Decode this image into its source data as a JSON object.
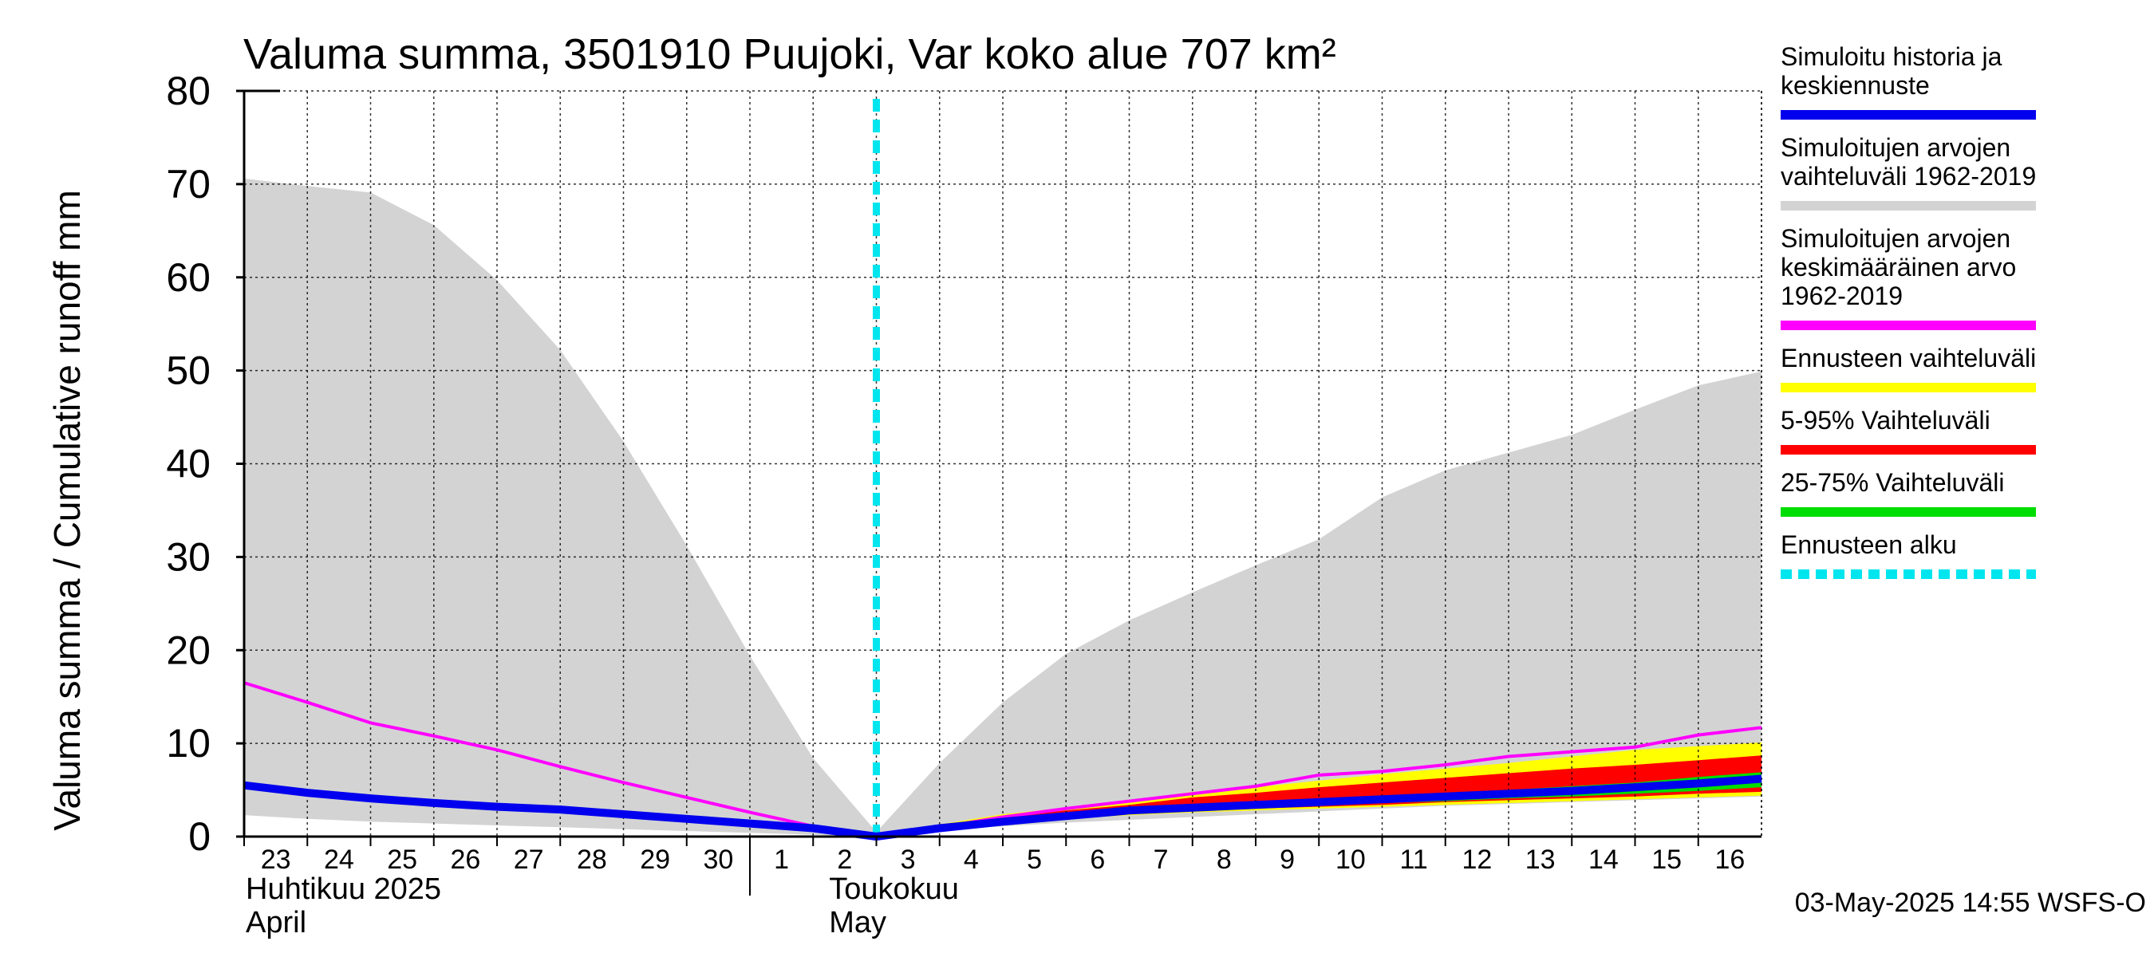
{
  "chart_data": {
    "type": "area",
    "title": "Valuma summa, 3501910 Puujoki, Var koko alue 707 km²",
    "ylabel": "Valuma summa / Cumulative runoff    mm",
    "ylim": [
      0,
      80
    ],
    "yticks": [
      0,
      10,
      20,
      30,
      40,
      50,
      60,
      70,
      80
    ],
    "x_day_labels": [
      "23",
      "24",
      "25",
      "26",
      "27",
      "28",
      "29",
      "30",
      "1",
      "2",
      "3",
      "4",
      "5",
      "6",
      "7",
      "8",
      "9",
      "10",
      "11",
      "12",
      "13",
      "14",
      "15",
      "16"
    ],
    "month_labels": [
      {
        "fi": "Huhtikuu  2025",
        "en": "April"
      },
      {
        "fi": "Toukokuu",
        "en": "May"
      }
    ],
    "forecast_start_day_index": 10,
    "series": [
      {
        "name": "Simuloitujen arvojen vaihteluväli 1962-2019",
        "kind": "band",
        "color": "#d3d3d3",
        "upper": [
          70.6,
          69.8,
          69.1,
          65.6,
          59.7,
          52.2,
          42.4,
          31.2,
          19.4,
          8.4,
          0.5,
          7.9,
          14.4,
          19.6,
          23.2,
          26.2,
          29.1,
          31.9,
          36.4,
          39.3,
          41.2,
          43.1,
          45.8,
          48.4,
          49.9
        ],
        "lower": [
          2.3,
          1.9,
          1.6,
          1.4,
          1.2,
          1.0,
          0.8,
          0.6,
          0.4,
          0.2,
          0.0,
          0.7,
          1.1,
          1.5,
          1.8,
          2.1,
          2.4,
          2.7,
          3.0,
          3.3,
          3.5,
          3.7,
          3.9,
          4.1,
          4.3
        ]
      },
      {
        "name": "Ennusteen vaihteluväli",
        "kind": "band",
        "color": "#ffff00",
        "upper": [
          null,
          null,
          null,
          null,
          null,
          null,
          null,
          null,
          null,
          null,
          0.0,
          1.3,
          2.4,
          3.1,
          3.9,
          4.8,
          5.3,
          6.0,
          6.7,
          7.3,
          7.9,
          8.6,
          9.3,
          9.7,
          10.1
        ],
        "lower": [
          null,
          null,
          null,
          null,
          null,
          null,
          null,
          null,
          null,
          null,
          0.0,
          0.8,
          1.4,
          1.9,
          2.3,
          2.6,
          2.8,
          3.0,
          3.2,
          3.4,
          3.6,
          3.8,
          4.0,
          4.2,
          4.4
        ]
      },
      {
        "name": "5-95% Vaihteluväli",
        "kind": "band",
        "color": "#ff0000",
        "upper": [
          null,
          null,
          null,
          null,
          null,
          null,
          null,
          null,
          null,
          null,
          0.0,
          1.2,
          2.1,
          2.8,
          3.4,
          4.2,
          4.7,
          5.3,
          5.8,
          6.3,
          6.8,
          7.3,
          7.7,
          8.2,
          8.7
        ],
        "lower": [
          null,
          null,
          null,
          null,
          null,
          null,
          null,
          null,
          null,
          null,
          0.0,
          0.9,
          1.5,
          2.0,
          2.5,
          2.8,
          3.0,
          3.2,
          3.4,
          3.7,
          3.9,
          4.1,
          4.3,
          4.6,
          4.8
        ]
      },
      {
        "name": "25-75% Vaihteluväli",
        "kind": "band",
        "color": "#00dd00",
        "upper": [
          null,
          null,
          null,
          null,
          null,
          null,
          null,
          null,
          null,
          null,
          0.0,
          1.1,
          1.8,
          2.4,
          3.0,
          3.4,
          3.7,
          4.0,
          4.3,
          4.6,
          5.0,
          5.4,
          5.8,
          6.4,
          6.9
        ],
        "lower": [
          null,
          null,
          null,
          null,
          null,
          null,
          null,
          null,
          null,
          null,
          0.0,
          1.0,
          1.6,
          2.1,
          2.6,
          2.9,
          3.2,
          3.4,
          3.6,
          3.8,
          4.1,
          4.3,
          4.6,
          4.9,
          5.3
        ]
      },
      {
        "name": "Simuloitujen arvojen keskimääräinen arvo 1962-2019",
        "kind": "line",
        "color": "#ff00ff",
        "values": [
          16.5,
          14.4,
          12.2,
          10.8,
          9.3,
          7.5,
          5.8,
          4.2,
          2.6,
          1.1,
          0.0,
          1.0,
          2.1,
          3.0,
          3.8,
          4.6,
          5.4,
          6.6,
          7.0,
          7.7,
          8.6,
          9.1,
          9.6,
          10.9,
          11.7
        ]
      },
      {
        "name": "Simuloitu historia ja keskiennuste",
        "kind": "line",
        "color": "#0000ee",
        "values": [
          5.5,
          4.7,
          4.1,
          3.6,
          3.2,
          2.9,
          2.4,
          1.9,
          1.4,
          0.9,
          0.0,
          0.9,
          1.6,
          2.2,
          2.8,
          3.1,
          3.4,
          3.7,
          4.0,
          4.3,
          4.6,
          4.9,
          5.3,
          5.7,
          6.2
        ]
      }
    ]
  },
  "legend": [
    {
      "lines": [
        "Simuloitu historia ja",
        "keskiennuste"
      ],
      "color": "#0000ee",
      "style": "solid"
    },
    {
      "lines": [
        "Simuloitujen arvojen",
        "vaihteluväli 1962-2019"
      ],
      "color": "#d3d3d3",
      "style": "solid"
    },
    {
      "lines": [
        "Simuloitujen arvojen",
        "keskimääräinen arvo",
        "   1962-2019"
      ],
      "color": "#ff00ff",
      "style": "solid"
    },
    {
      "lines": [
        "Ennusteen vaihteluväli"
      ],
      "color": "#ffff00",
      "style": "solid"
    },
    {
      "lines": [
        "5-95% Vaihteluväli"
      ],
      "color": "#ff0000",
      "style": "solid"
    },
    {
      "lines": [
        "25-75% Vaihteluväli"
      ],
      "color": "#00dd00",
      "style": "solid"
    },
    {
      "lines": [
        "Ennusteen alku"
      ],
      "color": "#00e5ee",
      "style": "dashed"
    }
  ],
  "footer_timestamp": "03-May-2025 14:55 WSFS-O"
}
